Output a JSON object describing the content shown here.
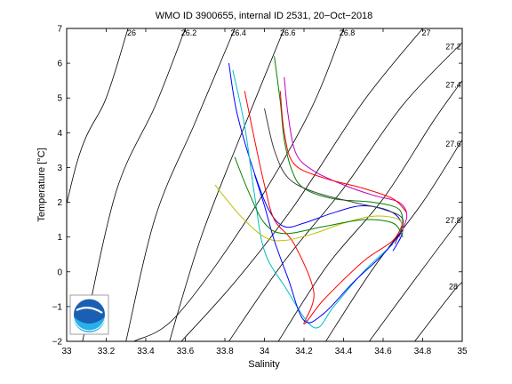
{
  "chart_data": {
    "type": "line",
    "title": "WMO ID 3900655, internal ID 2531, 20−Oct−2018",
    "xlabel": "Salinity",
    "ylabel": "Temperature [°C]",
    "xlim": [
      33,
      35
    ],
    "ylim": [
      -2,
      7
    ],
    "xticks": [
      "33",
      "33.2",
      "33.4",
      "33.6",
      "33.8",
      "34",
      "34.2",
      "34.4",
      "34.6",
      "34.8",
      "35"
    ],
    "yticks": [
      "−2",
      "−1",
      "0",
      "1",
      "2",
      "3",
      "4",
      "5",
      "6",
      "7"
    ],
    "grid": false,
    "legend": "none",
    "density_contours": [
      {
        "label": "26",
        "points": [
          [
            32.85,
            -2
          ],
          [
            33.05,
            3.1
          ],
          [
            33.2,
            5.0
          ],
          [
            33.31,
            7
          ]
        ]
      },
      {
        "label": "26.2",
        "points": [
          [
            33.08,
            -2
          ],
          [
            33.25,
            2.3
          ],
          [
            33.45,
            4.8
          ],
          [
            33.6,
            7
          ]
        ]
      },
      {
        "label": "26.4",
        "points": [
          [
            33.3,
            -2
          ],
          [
            33.45,
            1.6
          ],
          [
            33.65,
            4.3
          ],
          [
            33.85,
            7
          ]
        ]
      },
      {
        "label": "26.6",
        "points": [
          [
            33.52,
            -2
          ],
          [
            33.68,
            1.0
          ],
          [
            33.9,
            4.2
          ],
          [
            34.1,
            7
          ]
        ]
      },
      {
        "label": "26.8",
        "points": [
          [
            33.34,
            -2
          ],
          [
            33.55,
            -1.3
          ],
          [
            33.9,
            1.4
          ],
          [
            34.22,
            4.5
          ],
          [
            34.4,
            7
          ]
        ]
      },
      {
        "label": "27",
        "points": [
          [
            33.58,
            -2
          ],
          [
            33.85,
            -0.3
          ],
          [
            34.15,
            1.9
          ],
          [
            34.5,
            4.9
          ],
          [
            34.8,
            7
          ]
        ]
      },
      {
        "label": "27.2",
        "points": [
          [
            33.82,
            -2
          ],
          [
            34.1,
            0.3
          ],
          [
            34.4,
            2.4
          ],
          [
            34.7,
            4.8
          ],
          [
            35,
            6.6
          ]
        ]
      },
      {
        "label": "27.4",
        "points": [
          [
            34.07,
            -2
          ],
          [
            34.32,
            0.2
          ],
          [
            34.6,
            2.1
          ],
          [
            34.85,
            4.3
          ],
          [
            35,
            5.5
          ]
        ]
      },
      {
        "label": "27.6",
        "points": [
          [
            34.31,
            -2
          ],
          [
            34.55,
            0.1
          ],
          [
            34.8,
            2.0
          ],
          [
            35,
            3.8
          ]
        ]
      },
      {
        "label": "27.8",
        "points": [
          [
            34.53,
            -2
          ],
          [
            34.75,
            -0.3
          ],
          [
            35,
            1.6
          ]
        ]
      },
      {
        "label": "28",
        "points": [
          [
            34.76,
            -2
          ],
          [
            34.95,
            -0.6
          ],
          [
            35,
            -0.3
          ]
        ]
      }
    ],
    "profile_colors": [
      "#0000ff",
      "#008000",
      "#ff0000",
      "#00bfbf",
      "#bf00bf",
      "#bfbf00",
      "#404040"
    ],
    "series_profiles": [
      [
        [
          33.82,
          6.0
        ],
        [
          33.86,
          4.6
        ],
        [
          33.94,
          3.0
        ],
        [
          34.02,
          1.8
        ],
        [
          34.1,
          1.3
        ],
        [
          34.2,
          1.4
        ],
        [
          34.35,
          1.7
        ],
        [
          34.5,
          1.9
        ],
        [
          34.65,
          1.7
        ],
        [
          34.7,
          1.2
        ],
        [
          34.65,
          0.6
        ]
      ],
      [
        [
          34.05,
          6.2
        ],
        [
          34.08,
          4.9
        ],
        [
          34.1,
          3.8
        ],
        [
          34.14,
          2.9
        ],
        [
          34.2,
          2.4
        ],
        [
          34.35,
          2.1
        ],
        [
          34.55,
          2.0
        ],
        [
          34.68,
          1.8
        ],
        [
          34.7,
          1.3
        ]
      ],
      [
        [
          33.9,
          5.2
        ],
        [
          33.95,
          3.8
        ],
        [
          34.0,
          2.5
        ],
        [
          34.05,
          1.5
        ],
        [
          34.15,
          0.8
        ],
        [
          34.25,
          -0.6
        ],
        [
          34.2,
          -1.5
        ],
        [
          34.3,
          -0.8
        ],
        [
          34.5,
          0.3
        ],
        [
          34.65,
          0.9
        ],
        [
          34.7,
          1.4
        ]
      ],
      [
        [
          33.84,
          5.8
        ],
        [
          33.9,
          4.2
        ],
        [
          33.95,
          2.2
        ],
        [
          34.0,
          0.6
        ],
        [
          34.1,
          -0.4
        ],
        [
          34.25,
          -1.6
        ],
        [
          34.35,
          -1.0
        ],
        [
          34.5,
          0.0
        ],
        [
          34.65,
          0.8
        ]
      ],
      [
        [
          34.1,
          5.6
        ],
        [
          34.12,
          4.5
        ],
        [
          34.16,
          3.4
        ],
        [
          34.25,
          2.9
        ],
        [
          34.4,
          2.5
        ],
        [
          34.55,
          2.2
        ],
        [
          34.68,
          2.0
        ],
        [
          34.72,
          1.6
        ],
        [
          34.68,
          1.0
        ]
      ],
      [
        [
          33.75,
          2.5
        ],
        [
          33.88,
          1.6
        ],
        [
          34.0,
          1.0
        ],
        [
          34.1,
          0.9
        ],
        [
          34.25,
          1.1
        ],
        [
          34.4,
          1.4
        ],
        [
          34.55,
          1.6
        ],
        [
          34.68,
          1.5
        ],
        [
          34.7,
          1.1
        ]
      ],
      [
        [
          34.0,
          4.7
        ],
        [
          34.05,
          3.5
        ],
        [
          34.12,
          2.7
        ],
        [
          34.25,
          2.3
        ],
        [
          34.45,
          2.0
        ],
        [
          34.6,
          1.8
        ],
        [
          34.7,
          1.5
        ],
        [
          34.66,
          0.8
        ]
      ],
      [
        [
          33.95,
          2.8
        ],
        [
          34.0,
          1.9
        ],
        [
          34.05,
          0.9
        ],
        [
          34.12,
          -0.2
        ],
        [
          34.2,
          -1.4
        ],
        [
          34.3,
          -1.2
        ],
        [
          34.45,
          -0.3
        ],
        [
          34.6,
          0.5
        ],
        [
          34.7,
          1.2
        ]
      ],
      [
        [
          33.85,
          3.3
        ],
        [
          33.92,
          2.3
        ],
        [
          34.0,
          1.4
        ],
        [
          34.1,
          1.1
        ],
        [
          34.3,
          1.3
        ],
        [
          34.5,
          1.5
        ],
        [
          34.65,
          1.4
        ],
        [
          34.7,
          1.0
        ]
      ],
      [
        [
          34.08,
          5.2
        ],
        [
          34.1,
          4.0
        ],
        [
          34.15,
          3.1
        ],
        [
          34.3,
          2.7
        ],
        [
          34.5,
          2.4
        ],
        [
          34.65,
          2.1
        ],
        [
          34.72,
          1.7
        ]
      ]
    ]
  }
}
